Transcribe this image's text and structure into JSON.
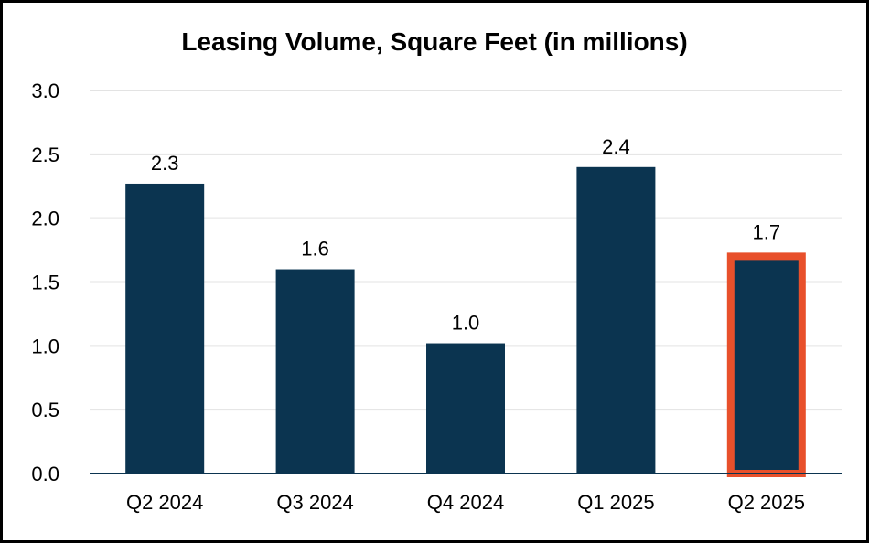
{
  "chart_data": {
    "type": "bar",
    "title": "Leasing Volume, Square Feet (in millions)",
    "categories": [
      "Q2 2024",
      "Q3 2024",
      "Q4 2024",
      "Q1 2025",
      "Q2 2025"
    ],
    "values": [
      2.27,
      1.6,
      1.02,
      2.4,
      1.73
    ],
    "data_labels": [
      "2.3",
      "1.6",
      "1.0",
      "2.4",
      "1.7"
    ],
    "highlighted_category": "Q2 2025",
    "ylim": [
      0,
      3.0
    ],
    "yticks": [
      0.0,
      0.5,
      1.0,
      1.5,
      2.0,
      2.5,
      3.0
    ],
    "ytick_labels": [
      "0.0",
      "0.5",
      "1.0",
      "1.5",
      "2.0",
      "2.5",
      "3.0"
    ],
    "xlabel": "",
    "ylabel": "",
    "grid": true,
    "legend": "none",
    "colors": {
      "bar": "#0b3450",
      "highlight_border": "#e8502b",
      "grid": "#e3e3e3",
      "axis": "#0b3450"
    }
  }
}
